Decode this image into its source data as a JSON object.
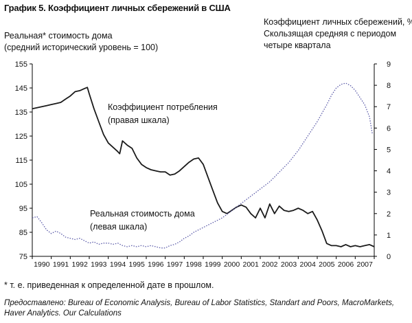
{
  "title": "График 5. Коэффициент личных сбережений в США",
  "left_axis_title": [
    "Реальная* стоимость дома",
    "(средний исторический уровень = 100)"
  ],
  "right_axis_title": [
    "Коэффициент личных сбережений, %",
    "Скользящая средняя с периодом",
    "четыре квартала"
  ],
  "footnote": "* т. е. приведенная к определенной дате в прошлом.",
  "source": "Предоставлено: Bureau of Economic Analysis, Bureau of Labor Statistics, Standart and Poors, MacroMarkets, Haver Analytics. Our Calculations",
  "chart_data": {
    "type": "line",
    "x_ticks": [
      "1990",
      "1991",
      "1992",
      "1993",
      "1994",
      "1995",
      "1996",
      "1997",
      "1998",
      "1999",
      "2000",
      "2001",
      "2002",
      "2003",
      "2004",
      "2005",
      "2006",
      "2007"
    ],
    "xlim": [
      1990,
      2008
    ],
    "left_axis": {
      "ylim": [
        75,
        155
      ],
      "ticks": [
        "155",
        "145",
        "135",
        "125",
        "115",
        "105",
        "95",
        "85",
        "75"
      ]
    },
    "right_axis": {
      "ylim": [
        0,
        9
      ],
      "ticks": [
        "9",
        "8",
        "7",
        "6",
        "5",
        "4",
        "3",
        "2",
        "1",
        "0"
      ]
    },
    "grid": false,
    "series": [
      {
        "axis": "right",
        "style": "solid",
        "color": "#1a1a1a",
        "annotation": [
          "Коэффициент потребления",
          "(правая шкала)"
        ],
        "points": [
          [
            1990.0,
            6.9
          ],
          [
            1990.25,
            6.95
          ],
          [
            1990.5,
            7.0
          ],
          [
            1990.75,
            7.05
          ],
          [
            1991.0,
            7.1
          ],
          [
            1991.25,
            7.15
          ],
          [
            1991.5,
            7.2
          ],
          [
            1991.75,
            7.35
          ],
          [
            1992.0,
            7.5
          ],
          [
            1992.25,
            7.7
          ],
          [
            1992.5,
            7.75
          ],
          [
            1992.75,
            7.85
          ],
          [
            1992.9,
            7.9
          ],
          [
            1993.0,
            7.6
          ],
          [
            1993.25,
            6.9
          ],
          [
            1993.5,
            6.3
          ],
          [
            1993.75,
            5.7
          ],
          [
            1994.0,
            5.3
          ],
          [
            1994.25,
            5.1
          ],
          [
            1994.5,
            4.9
          ],
          [
            1994.6,
            4.8
          ],
          [
            1994.75,
            5.4
          ],
          [
            1995.0,
            5.2
          ],
          [
            1995.25,
            5.05
          ],
          [
            1995.5,
            4.6
          ],
          [
            1995.75,
            4.3
          ],
          [
            1996.0,
            4.15
          ],
          [
            1996.25,
            4.05
          ],
          [
            1996.5,
            4.0
          ],
          [
            1996.75,
            3.95
          ],
          [
            1997.0,
            3.95
          ],
          [
            1997.25,
            3.8
          ],
          [
            1997.5,
            3.85
          ],
          [
            1997.75,
            4.0
          ],
          [
            1998.0,
            4.2
          ],
          [
            1998.25,
            4.4
          ],
          [
            1998.5,
            4.55
          ],
          [
            1998.75,
            4.6
          ],
          [
            1999.0,
            4.3
          ],
          [
            1999.25,
            3.7
          ],
          [
            1999.5,
            3.1
          ],
          [
            1999.75,
            2.5
          ],
          [
            2000.0,
            2.1
          ],
          [
            2000.25,
            2.0
          ],
          [
            2000.5,
            2.15
          ],
          [
            2000.75,
            2.3
          ],
          [
            2001.0,
            2.4
          ],
          [
            2001.25,
            2.3
          ],
          [
            2001.5,
            2.0
          ],
          [
            2001.75,
            1.8
          ],
          [
            2002.0,
            2.25
          ],
          [
            2002.25,
            1.8
          ],
          [
            2002.5,
            2.45
          ],
          [
            2002.75,
            2.0
          ],
          [
            2003.0,
            2.35
          ],
          [
            2003.25,
            2.15
          ],
          [
            2003.5,
            2.1
          ],
          [
            2003.75,
            2.15
          ],
          [
            2004.0,
            2.25
          ],
          [
            2004.25,
            2.15
          ],
          [
            2004.5,
            2.0
          ],
          [
            2004.75,
            2.1
          ],
          [
            2005.0,
            1.7
          ],
          [
            2005.25,
            1.2
          ],
          [
            2005.5,
            0.6
          ],
          [
            2005.75,
            0.5
          ],
          [
            2006.0,
            0.5
          ],
          [
            2006.25,
            0.45
          ],
          [
            2006.5,
            0.55
          ],
          [
            2006.75,
            0.45
          ],
          [
            2007.0,
            0.5
          ],
          [
            2007.25,
            0.45
          ],
          [
            2007.5,
            0.5
          ],
          [
            2007.75,
            0.55
          ],
          [
            2008.0,
            0.45
          ]
        ]
      },
      {
        "axis": "left",
        "style": "dotted",
        "color": "#5a5aa8",
        "annotation": [
          "Реальная стоимость дома",
          "(левая шкала)"
        ],
        "points": [
          [
            1990.0,
            91
          ],
          [
            1990.25,
            91.5
          ],
          [
            1990.5,
            89
          ],
          [
            1990.75,
            86
          ],
          [
            1991.0,
            84.5
          ],
          [
            1991.25,
            85.5
          ],
          [
            1991.5,
            84.5
          ],
          [
            1991.75,
            83
          ],
          [
            1992.0,
            82.5
          ],
          [
            1992.25,
            82
          ],
          [
            1992.5,
            82.5
          ],
          [
            1992.75,
            81.5
          ],
          [
            1993.0,
            80.5
          ],
          [
            1993.25,
            81
          ],
          [
            1993.5,
            80
          ],
          [
            1993.75,
            80.5
          ],
          [
            1994.0,
            80.5
          ],
          [
            1994.25,
            80
          ],
          [
            1994.5,
            80.5
          ],
          [
            1994.75,
            79.5
          ],
          [
            1995.0,
            79
          ],
          [
            1995.25,
            79.5
          ],
          [
            1995.5,
            79
          ],
          [
            1995.75,
            79.5
          ],
          [
            1996.0,
            79
          ],
          [
            1996.25,
            79.5
          ],
          [
            1996.5,
            79
          ],
          [
            1996.75,
            78.5
          ],
          [
            1997.0,
            78.5
          ],
          [
            1997.25,
            79.5
          ],
          [
            1997.5,
            80
          ],
          [
            1997.75,
            81
          ],
          [
            1998.0,
            82.5
          ],
          [
            1998.25,
            83.5
          ],
          [
            1998.5,
            85
          ],
          [
            1998.75,
            86
          ],
          [
            1999.0,
            87
          ],
          [
            1999.25,
            88
          ],
          [
            1999.5,
            89
          ],
          [
            1999.75,
            90
          ],
          [
            2000.0,
            91
          ],
          [
            2000.25,
            92.5
          ],
          [
            2000.5,
            94
          ],
          [
            2000.75,
            95.5
          ],
          [
            2001.0,
            97
          ],
          [
            2001.25,
            98.5
          ],
          [
            2001.5,
            100
          ],
          [
            2001.75,
            101.5
          ],
          [
            2002.0,
            103
          ],
          [
            2002.25,
            104.5
          ],
          [
            2002.5,
            106
          ],
          [
            2002.75,
            108
          ],
          [
            2003.0,
            110
          ],
          [
            2003.25,
            112
          ],
          [
            2003.5,
            114
          ],
          [
            2003.75,
            116.5
          ],
          [
            2004.0,
            119
          ],
          [
            2004.25,
            122
          ],
          [
            2004.5,
            125
          ],
          [
            2004.75,
            128
          ],
          [
            2005.0,
            131
          ],
          [
            2005.25,
            134.5
          ],
          [
            2005.5,
            138
          ],
          [
            2005.75,
            142
          ],
          [
            2006.0,
            145
          ],
          [
            2006.25,
            146.5
          ],
          [
            2006.5,
            147
          ],
          [
            2006.75,
            146
          ],
          [
            2007.0,
            144
          ],
          [
            2007.25,
            141
          ],
          [
            2007.5,
            138
          ],
          [
            2007.75,
            133
          ],
          [
            2007.9,
            126
          ]
        ]
      }
    ]
  }
}
